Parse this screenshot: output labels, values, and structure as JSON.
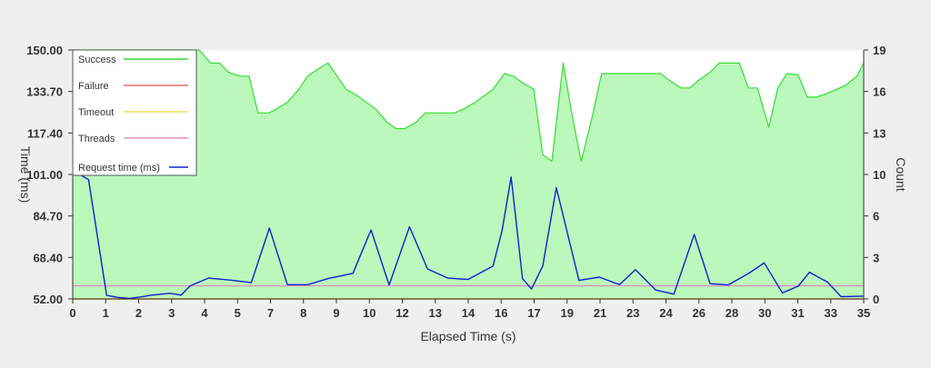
{
  "chart_data": {
    "type": "line",
    "title": "",
    "xlabel": "Elapsed Time (s)",
    "ylabel_left": "Time (ms)",
    "ylabel_right": "Count",
    "x_ticks": [
      "0",
      "1",
      "2",
      "3",
      "4",
      "5",
      "7",
      "8",
      "9",
      "10",
      "12",
      "13",
      "14",
      "16",
      "17",
      "19",
      "21",
      "23",
      "24",
      "26",
      "28",
      "30",
      "31",
      "33",
      "35"
    ],
    "y_left_ticks": [
      "52.00",
      "68.40",
      "84.70",
      "101.00",
      "117.40",
      "133.70",
      "150.00"
    ],
    "y_right_ticks": [
      "0",
      "3",
      "6",
      "10",
      "13",
      "16",
      "19"
    ],
    "xlim": [
      0,
      35
    ],
    "ylim_left": [
      52,
      150
    ],
    "ylim_right": [
      0,
      19
    ],
    "grid": false,
    "legend_position": "top-left",
    "series": [
      {
        "name": "Success",
        "axis": "right",
        "style": "area",
        "color": "#33dd33",
        "fill": "#bbf8bb",
        "x": [
          0,
          0.4,
          0.9,
          1.3,
          1.7,
          2.2,
          2.6,
          3.0,
          3.5,
          3.9,
          4.3,
          4.8,
          5.2,
          5.6,
          6.1,
          6.5,
          6.9,
          7.4,
          7.8,
          8.2,
          8.7,
          9.1,
          9.5,
          10.0,
          10.4,
          10.8,
          11.3,
          11.7,
          12.1,
          12.6,
          13.0,
          13.4,
          13.9,
          14.3,
          14.7,
          15.2,
          15.6,
          16.0,
          16.5,
          16.9,
          17.3,
          17.8,
          18.2,
          18.6,
          19.1,
          19.5,
          19.9,
          20.4,
          20.8,
          21.2,
          21.7,
          22.1,
          22.5,
          23.0,
          23.4,
          23.8,
          24.3,
          24.7,
          25.1,
          25.6,
          26.0,
          26.4,
          26.9,
          27.3,
          27.7,
          28.2,
          28.6,
          29.0,
          29.5,
          29.9,
          30.3,
          30.8,
          31.2,
          31.6,
          32.1,
          32.5,
          32.9,
          33.4,
          33.8,
          34.2,
          34.7,
          35
        ],
        "values": [
          19,
          19,
          19,
          19,
          19,
          19,
          19,
          19,
          19,
          19,
          19,
          19,
          19,
          19,
          18,
          18,
          17.3,
          17,
          17,
          14.2,
          14.2,
          14.6,
          15,
          16,
          17,
          17.5,
          18,
          17,
          16,
          15.5,
          15,
          14.5,
          13.5,
          13,
          13,
          13.5,
          14.2,
          14.2,
          14.2,
          14.2,
          14.5,
          15,
          15.5,
          16,
          17.2,
          17,
          16.5,
          16,
          11,
          10.5,
          18,
          14,
          10.5,
          14,
          17.2,
          17.2,
          17.2,
          17.2,
          17.2,
          17.2,
          17.2,
          16.7,
          16.1,
          16.1,
          16.7,
          17.3,
          18,
          18,
          18,
          16.1,
          16.1,
          13.1,
          16.1,
          17.2,
          17.1,
          15.4,
          15.4,
          15.7,
          16,
          16.3,
          17,
          18
        ]
      },
      {
        "name": "Failure",
        "axis": "right",
        "style": "line",
        "color": "#ee6666",
        "x": [
          0,
          35
        ],
        "values": [
          0,
          0
        ]
      },
      {
        "name": "Timeout",
        "axis": "right",
        "style": "line",
        "color": "#eedd55",
        "x": [
          0,
          35
        ],
        "values": [
          0,
          0
        ]
      },
      {
        "name": "Threads",
        "axis": "right",
        "style": "line",
        "color": "#e090c0",
        "x": [
          0,
          35
        ],
        "values": [
          1,
          1
        ]
      },
      {
        "name": "Request time (ms)",
        "axis": "left",
        "style": "line",
        "color": "#1122cc",
        "x": [
          0.3,
          0.7,
          1.5,
          2.0,
          2.5,
          3.0,
          3.5,
          4.3,
          4.8,
          5.2,
          6.0,
          7.0,
          7.9,
          8.7,
          9.5,
          10.4,
          11.3,
          12.4,
          13.2,
          14.0,
          14.9,
          15.7,
          16.6,
          17.5,
          18.6,
          19.0,
          19.4,
          19.9,
          20.3,
          20.8,
          21.4,
          22.4,
          23.3,
          24.2,
          24.9,
          25.8,
          26.6,
          27.5,
          28.2,
          29.0,
          29.9,
          30.6,
          31.4,
          32.1,
          32.6,
          33.4,
          34.0,
          35
        ],
        "values": [
          101,
          99,
          53.4,
          52.6,
          52.2,
          52.8,
          53.5,
          54.2,
          53.5,
          57.2,
          60.2,
          59.4,
          58.4,
          79.9,
          57.6,
          57.6,
          60.0,
          62.1,
          79.2,
          57.5,
          80.4,
          63.8,
          60.2,
          59.7,
          65.0,
          79.0,
          100.0,
          60.0,
          55.9,
          65.0,
          95.8,
          59.3,
          60.6,
          57.6,
          63.5,
          55.5,
          53.9,
          77.4,
          58.0,
          57.5,
          62.0,
          66.2,
          54.4,
          57.0,
          62.5,
          58.6,
          52.9,
          53.1
        ]
      }
    ]
  }
}
